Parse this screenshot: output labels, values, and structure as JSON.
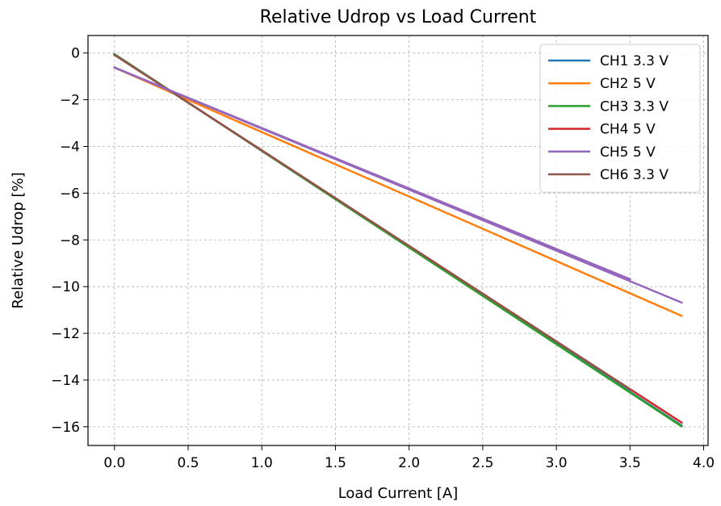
{
  "chart_data": {
    "type": "line",
    "title": "Relative Udrop vs Load Current",
    "xlabel": "Load Current [A]",
    "ylabel": "Relative Udrop [%]",
    "xlim": [
      -0.18,
      4.03
    ],
    "ylim": [
      -16.8,
      0.75
    ],
    "xticks": [
      0.0,
      0.5,
      1.0,
      1.5,
      2.0,
      2.5,
      3.0,
      3.5,
      4.0
    ],
    "xtick_labels": [
      "0.0",
      "0.5",
      "1.0",
      "1.5",
      "2.0",
      "2.5",
      "3.0",
      "3.5",
      "4.0"
    ],
    "yticks": [
      0,
      -2,
      -4,
      -6,
      -8,
      -10,
      -12,
      -14,
      -16
    ],
    "ytick_labels": [
      "0",
      "−2",
      "−4",
      "−6",
      "−8",
      "−10",
      "−12",
      "−14",
      "−16"
    ],
    "grid": true,
    "legend_position": "top-right",
    "series": [
      {
        "name": "CH1 3.3 V",
        "color": "#1f77b4",
        "x": [
          0.0,
          3.85
        ],
        "y": [
          -0.05,
          -15.95
        ]
      },
      {
        "name": "CH2 5 V",
        "color": "#ff7f0e",
        "x": [
          0.0,
          3.85
        ],
        "y": [
          -0.62,
          -11.25
        ]
      },
      {
        "name": "CH3 3.3 V",
        "color": "#2ca02c",
        "x": [
          0.0,
          3.85
        ],
        "y": [
          -0.05,
          -15.98
        ]
      },
      {
        "name": "CH4 5 V",
        "color": "#d62728",
        "x": [
          0.0,
          3.85
        ],
        "y": [
          -0.08,
          -15.82
        ]
      },
      {
        "name": "CH5 5 V",
        "color": "#9467bd",
        "x": [
          0.0,
          3.85
        ],
        "y": [
          -0.62,
          -10.68
        ]
      },
      {
        "name": "CH6 3.3 V",
        "color": "#8c564b",
        "x": [
          0.0,
          3.5
        ],
        "y": [
          -0.08,
          -14.4
        ]
      },
      {
        "name": "",
        "color": "#9467bd",
        "x": [
          0.0,
          3.5
        ],
        "y": [
          -0.62,
          -9.68
        ]
      }
    ]
  }
}
